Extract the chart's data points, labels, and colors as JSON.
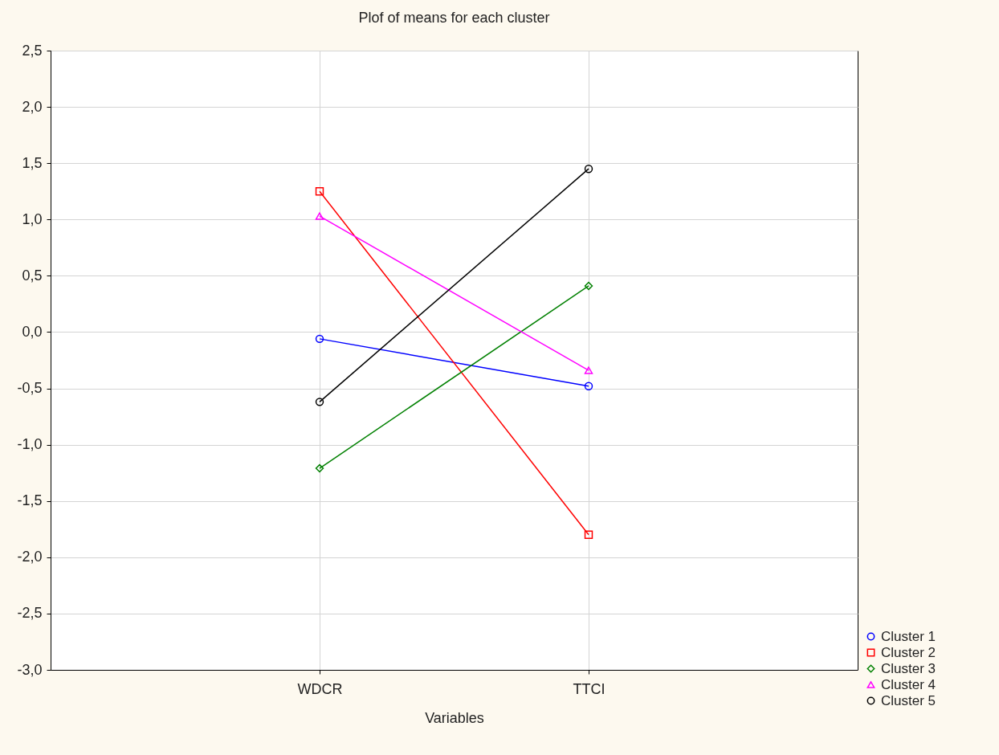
{
  "chart_data": {
    "type": "line",
    "title": "Plof of means for each cluster",
    "xlabel": "Variables",
    "categories": [
      "WDCR",
      "TTCI"
    ],
    "ylim": [
      -3.0,
      2.5
    ],
    "yticks": [
      {
        "value": -3.0,
        "label": "-3,0"
      },
      {
        "value": -2.5,
        "label": "-2,5"
      },
      {
        "value": -2.0,
        "label": "-2,0"
      },
      {
        "value": -1.5,
        "label": "-1,5"
      },
      {
        "value": -1.0,
        "label": "-1,0"
      },
      {
        "value": -0.5,
        "label": "-0,5"
      },
      {
        "value": 0,
        "label": "0,0"
      },
      {
        "value": 0.5,
        "label": "0,5"
      },
      {
        "value": 1.0,
        "label": "1,0"
      },
      {
        "value": 1.5,
        "label": "1,5"
      },
      {
        "value": 2.0,
        "label": "2,0"
      },
      {
        "value": 2.5,
        "label": "2,5"
      }
    ],
    "grid": true,
    "legend": "bottom right",
    "line_style": "solid",
    "series": [
      {
        "name": "Cluster 1",
        "color": "#0000ff",
        "marker": "circle",
        "values": [
          -0.06,
          -0.48
        ]
      },
      {
        "name": "Cluster 2",
        "color": "#ff0000",
        "marker": "square",
        "values": [
          1.25,
          -1.8
        ]
      },
      {
        "name": "Cluster 3",
        "color": "#008000",
        "marker": "diamond",
        "values": [
          -1.21,
          0.41
        ]
      },
      {
        "name": "Cluster 4",
        "color": "#ff00ff",
        "marker": "triangle",
        "values": [
          1.03,
          -0.34
        ]
      },
      {
        "name": "Cluster 5",
        "color": "#000000",
        "marker": "circle",
        "values": [
          -0.62,
          1.45
        ]
      }
    ]
  }
}
